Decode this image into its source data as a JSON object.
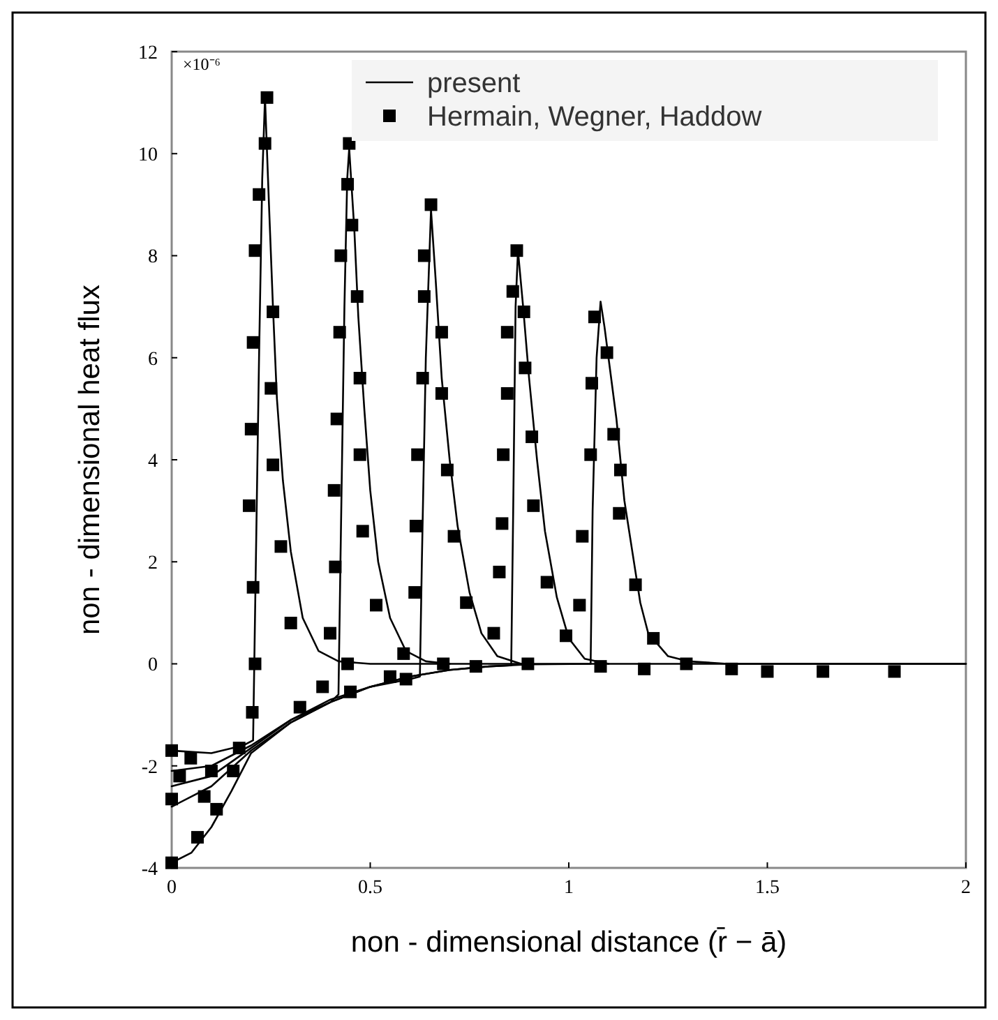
{
  "chart_data": {
    "type": "line",
    "xlabel": "non - dimensional distance (r̄ − ā)",
    "ylabel": "non - dimensional heat flux",
    "annotations": [
      "×10⁻⁶"
    ],
    "xlim": [
      0,
      2
    ],
    "xticks": [
      0,
      0.5,
      1,
      1.5,
      2
    ],
    "ylim": [
      -4,
      12
    ],
    "yticks": [
      -4,
      -2,
      0,
      2,
      4,
      6,
      8,
      10,
      12
    ],
    "grid": false,
    "legend": "top right",
    "series": [
      {
        "name": "present",
        "color": "#000000",
        "marker": "none",
        "x": [
          0,
          0.1,
          0.18,
          0.205,
          0.21,
          0.22,
          0.228,
          0.235,
          0.245,
          0.255,
          0.265,
          0.28,
          0.3,
          0.33,
          0.37,
          0.42,
          0.5,
          2
        ],
        "values": [
          -1.7,
          -1.75,
          -1.6,
          -1.5,
          1,
          6,
          9.5,
          11.1,
          9,
          7,
          5.2,
          3.6,
          2.2,
          0.9,
          0.25,
          0.05,
          0,
          0
        ]
      },
      {
        "color": "#000000",
        "marker": "none",
        "x": [
          0,
          0.1,
          0.2,
          0.3,
          0.4,
          0.42,
          0.425,
          0.435,
          0.442,
          0.447,
          0.46,
          0.47,
          0.485,
          0.5,
          0.52,
          0.55,
          0.59,
          0.64,
          0.7
        ],
        "values": [
          -2.1,
          -2,
          -1.6,
          -1.1,
          -0.75,
          -0.6,
          2,
          7,
          9.5,
          10.1,
          8.5,
          6.8,
          5,
          3.4,
          2,
          0.9,
          0.25,
          0.05,
          0
        ]
      },
      {
        "color": "#000000",
        "marker": "none",
        "x": [
          0,
          0.1,
          0.2,
          0.3,
          0.4,
          0.5,
          0.6,
          0.625,
          0.63,
          0.64,
          0.653,
          0.665,
          0.68,
          0.7,
          0.72,
          0.75,
          0.78,
          0.82,
          0.88
        ],
        "values": [
          -2.4,
          -2.2,
          -1.65,
          -1.1,
          -0.7,
          -0.45,
          -0.3,
          -0.25,
          2,
          6,
          8.9,
          7.5,
          5.6,
          4,
          2.7,
          1.4,
          0.6,
          0.15,
          0
        ]
      },
      {
        "color": "#000000",
        "marker": "none",
        "x": [
          0,
          0.1,
          0.2,
          0.3,
          0.4,
          0.5,
          0.6,
          0.7,
          0.8,
          0.855,
          0.86,
          0.866,
          0.872,
          0.885,
          0.9,
          0.92,
          0.94,
          0.97,
          1,
          1.04,
          1.1
        ],
        "values": [
          -2.8,
          -2.4,
          -1.7,
          -1.15,
          -0.75,
          -0.45,
          -0.25,
          -0.12,
          -0.05,
          -0.03,
          3,
          7,
          8.1,
          7,
          5.6,
          4,
          2.6,
          1.3,
          0.5,
          0.1,
          0
        ]
      },
      {
        "color": "#000000",
        "marker": "none",
        "x": [
          0,
          0.05,
          0.1,
          0.15,
          0.2,
          0.3,
          0.4,
          0.5,
          0.6,
          0.7,
          0.8,
          0.9,
          1.055,
          1.06,
          1.07,
          1.08,
          1.09,
          1.1,
          1.12,
          1.14,
          1.16,
          1.18,
          1.2,
          1.25,
          1.3,
          1.4,
          2
        ],
        "values": [
          -3.9,
          -3.7,
          -3.2,
          -2.5,
          -1.75,
          -1.15,
          -0.75,
          -0.45,
          -0.25,
          -0.12,
          -0.05,
          -0.01,
          0,
          3,
          6,
          7.1,
          6.6,
          6,
          4.8,
          3.2,
          2.2,
          1.2,
          0.6,
          0.15,
          0.05,
          0,
          0
        ]
      },
      {
        "name": "Hermain, Wegner, Haddow",
        "type": "scatter",
        "color": "#000000",
        "marker": "square",
        "x": [
          0.24,
          0.235,
          0.22,
          0.21,
          0.205,
          0.2,
          0.195,
          0.205,
          0.21,
          0.255,
          0.25,
          0.255,
          0.275,
          0.3,
          0.203,
          0.447,
          0.443,
          0.454,
          0.426,
          0.467,
          0.423,
          0.474,
          0.416,
          0.474,
          0.409,
          0.481,
          0.412,
          0.515,
          0.399,
          0.584,
          0.443,
          0.653,
          0.636,
          0.636,
          0.68,
          0.632,
          0.68,
          0.619,
          0.694,
          0.615,
          0.711,
          0.612,
          0.742,
          0.684,
          0.55,
          0.59,
          0.869,
          0.859,
          0.887,
          0.845,
          0.89,
          0.845,
          0.907,
          0.835,
          0.911,
          0.832,
          0.825,
          0.945,
          0.811,
          0.993,
          0.897,
          0.766,
          1.065,
          1.096,
          1.058,
          1.113,
          1.13,
          1.055,
          1.127,
          1.034,
          1.168,
          1.027,
          1.213,
          1.296,
          1.41,
          1.5,
          1.64,
          1.82,
          1.08,
          1.19,
          0,
          0.048,
          0.02,
          0.1,
          0.17,
          0.155,
          0,
          0.082,
          0.113,
          0.065,
          0,
          0.323,
          0.38,
          0.45
        ],
        "values": [
          11.1,
          10.2,
          9.2,
          8.1,
          6.3,
          4.6,
          3.1,
          1.5,
          0,
          6.9,
          5.4,
          3.9,
          2.3,
          0.8,
          -0.95,
          10.2,
          9.4,
          8.6,
          8,
          7.2,
          6.5,
          5.6,
          4.8,
          4.1,
          3.4,
          2.6,
          1.9,
          1.15,
          0.6,
          0.2,
          0,
          9,
          8,
          7.2,
          6.5,
          5.6,
          5.3,
          4.1,
          3.8,
          2.7,
          2.5,
          1.4,
          1.2,
          0,
          -0.25,
          -0.3,
          8.1,
          7.3,
          6.9,
          6.5,
          5.8,
          5.3,
          4.45,
          4.1,
          3.1,
          2.75,
          1.8,
          1.6,
          0.6,
          0.55,
          0,
          -0.05,
          6.8,
          6.1,
          5.5,
          4.5,
          3.8,
          4.1,
          2.95,
          2.5,
          1.55,
          1.15,
          0.5,
          0,
          -0.1,
          -0.15,
          -0.15,
          -0.15,
          -0.05,
          -0.1,
          -1.7,
          -1.85,
          -2.2,
          -2.1,
          -1.65,
          -2.1,
          -2.65,
          -2.6,
          -2.85,
          -3.4,
          -3.9,
          -0.85,
          -0.45,
          -0.55
        ]
      }
    ]
  }
}
